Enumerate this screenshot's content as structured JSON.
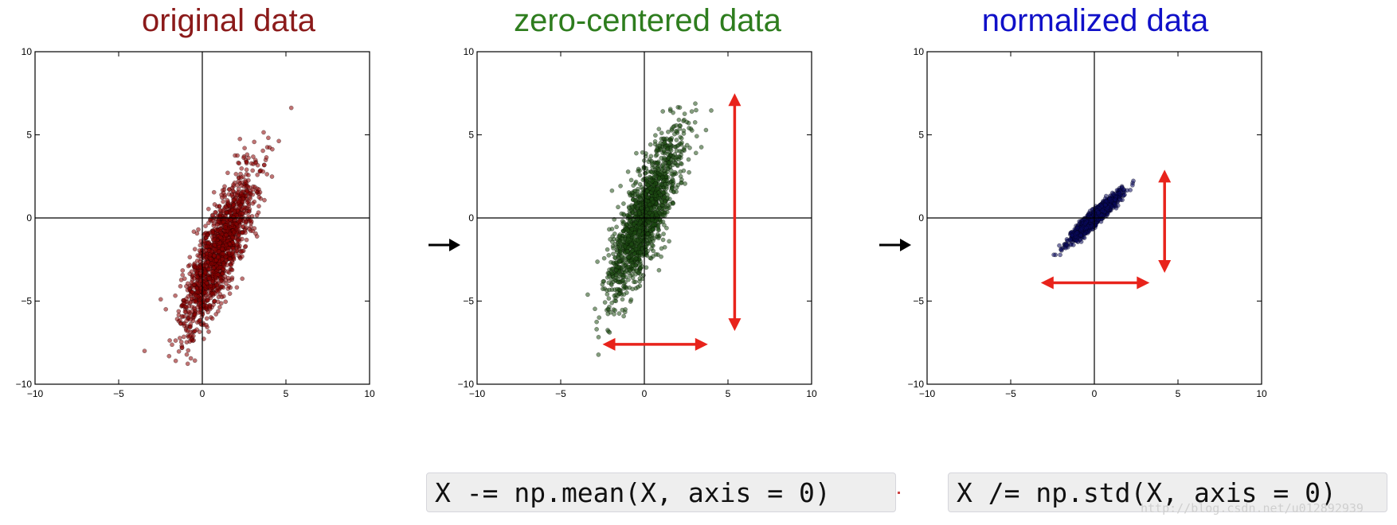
{
  "chart_data": [
    {
      "type": "scatter",
      "title": "original data",
      "xlabel": "",
      "ylabel": "",
      "xlim": [
        -10,
        10
      ],
      "ylim": [
        -10,
        10
      ],
      "xticks": [
        -10,
        -5,
        0,
        5,
        10
      ],
      "yticks": [
        -10,
        -5,
        0,
        5,
        10
      ],
      "grid": false,
      "axis_lines_through_origin": true,
      "point_color": "#8b0000",
      "cloud": {
        "n_points": 1500,
        "mean": [
          1.0,
          -2.0
        ],
        "major_axis_slope": 2.6,
        "extent_major": [
          -7.2,
          9.6
        ],
        "extent_minor": 1.3
      },
      "annotations": []
    },
    {
      "type": "scatter",
      "title": "zero-centered data",
      "xlabel": "",
      "ylabel": "",
      "xlim": [
        -10,
        10
      ],
      "ylim": [
        -10,
        10
      ],
      "xticks": [
        -10,
        -5,
        0,
        5,
        10
      ],
      "yticks": [
        -10,
        -5,
        0,
        5,
        10
      ],
      "grid": false,
      "axis_lines_through_origin": true,
      "point_color": "#1d4d12",
      "cloud": {
        "n_points": 1500,
        "mean": [
          0.0,
          0.0
        ],
        "major_axis_slope": 2.6,
        "extent_major": [
          -9.0,
          9.0
        ],
        "extent_minor": 1.3
      },
      "annotations": [
        {
          "type": "double-arrow",
          "color": "#e8231b",
          "from": [
            5.4,
            7.5
          ],
          "to": [
            5.4,
            -6.8
          ]
        },
        {
          "type": "double-arrow",
          "color": "#e8231b",
          "from": [
            -2.5,
            -7.6
          ],
          "to": [
            3.8,
            -7.6
          ]
        }
      ]
    },
    {
      "type": "scatter",
      "title": "normalized data",
      "xlabel": "",
      "ylabel": "",
      "xlim": [
        -10,
        10
      ],
      "ylim": [
        -10,
        10
      ],
      "xticks": [
        -10,
        -5,
        0,
        5,
        10
      ],
      "yticks": [
        -10,
        -5,
        0,
        5,
        10
      ],
      "grid": false,
      "axis_lines_through_origin": true,
      "point_color": "#0a0a5c",
      "cloud": {
        "n_points": 1500,
        "mean": [
          0.0,
          0.0
        ],
        "major_axis_slope": 0.95,
        "extent_major": [
          -3.3,
          3.3
        ],
        "extent_minor": 0.35
      },
      "annotations": [
        {
          "type": "double-arrow",
          "color": "#e8231b",
          "from": [
            4.2,
            2.9
          ],
          "to": [
            4.2,
            -3.3
          ]
        },
        {
          "type": "double-arrow",
          "color": "#e8231b",
          "from": [
            -3.2,
            -3.9
          ],
          "to": [
            3.3,
            -3.9
          ]
        }
      ]
    }
  ],
  "titles": {
    "original": "original data",
    "zero_centered": "zero-centered data",
    "normalized": "normalized data"
  },
  "title_colors": {
    "original": "#8b1a1a",
    "zero_centered": "#2e7d1e",
    "normalized": "#1010c8"
  },
  "code": {
    "mean": "X -= np.mean(X, axis = 0)",
    "std": "X /= np.std(X, axis = 0)"
  },
  "watermark": "http://blog.csdn.net/u012892939",
  "flow_arrows": [
    "right-arrow-icon",
    "right-arrow-icon"
  ]
}
